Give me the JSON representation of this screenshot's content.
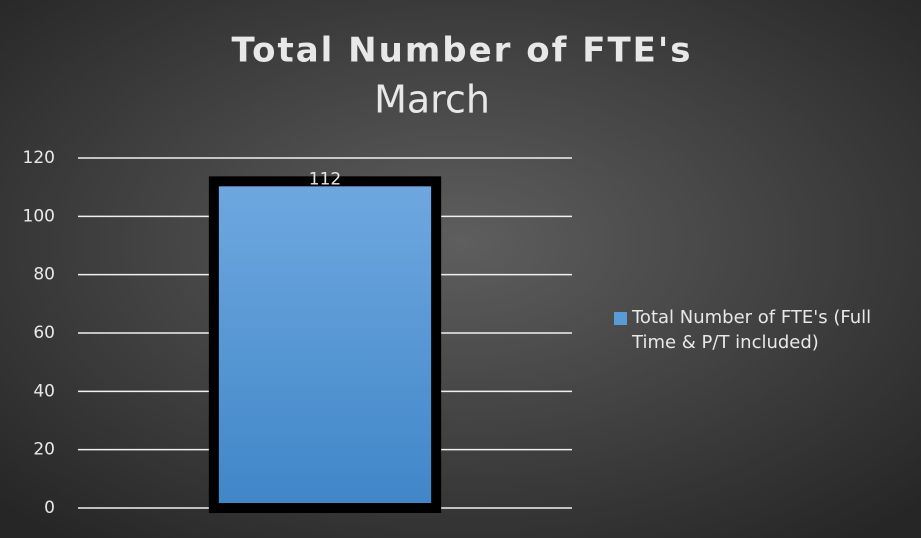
{
  "chart_data": {
    "type": "bar",
    "title": "Total Number of FTE's",
    "subtitle": "March",
    "categories": [
      null
    ],
    "series": [
      {
        "name": "Total Number of FTE's (Full Time & P/T included)",
        "color": "#5b9bd5",
        "values": [
          112
        ]
      }
    ],
    "ylim": [
      0,
      120
    ],
    "yticks": [
      0,
      20,
      40,
      60,
      80,
      100,
      120
    ],
    "grid": true,
    "legend": "right"
  }
}
